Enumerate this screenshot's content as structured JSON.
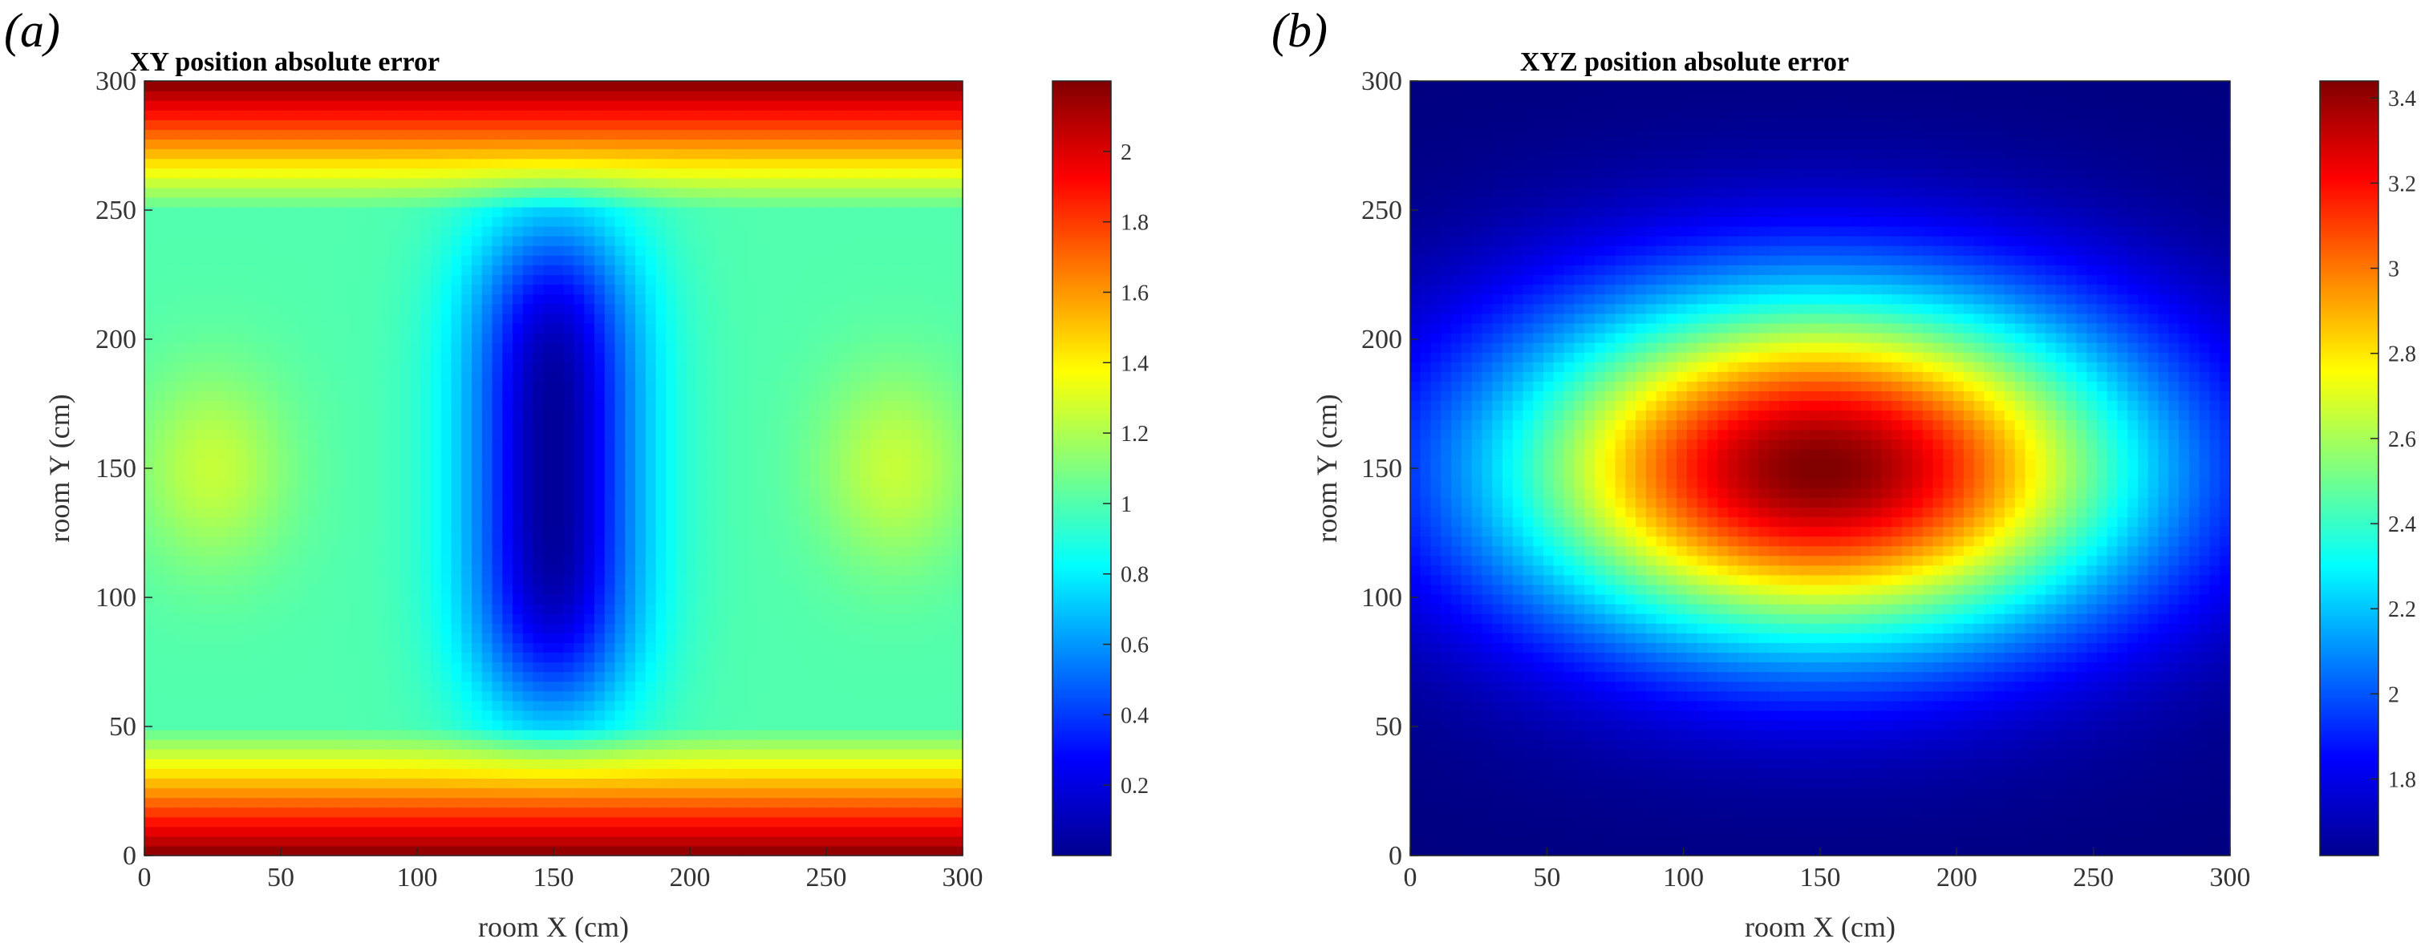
{
  "chart_data": [
    {
      "type": "heatmap",
      "panel_label": "(a)",
      "title": "XY position absolute error",
      "xlabel": "room X (cm)",
      "ylabel": "room Y (cm)",
      "xlim": [
        0,
        300
      ],
      "ylim": [
        0,
        300
      ],
      "x_ticks": [
        "0",
        "50",
        "100",
        "150",
        "200",
        "250",
        "300"
      ],
      "y_ticks": [
        "0",
        "50",
        "100",
        "150",
        "200",
        "250",
        "300"
      ],
      "colorbar": {
        "range": [
          0.0,
          2.2
        ],
        "ticks": [
          "0.2",
          "0.4",
          "0.6",
          "0.8",
          "1",
          "1.2",
          "1.4",
          "1.6",
          "1.8",
          "2"
        ],
        "tick_values": [
          0.2,
          0.4,
          0.6,
          0.8,
          1.0,
          1.2,
          1.4,
          1.6,
          1.8,
          2.0
        ],
        "colormap": "jet"
      },
      "description_values": {
        "center_minimum_at": [
          150,
          150
        ],
        "min_value": 0.05,
        "band_max_near_y": [
          0,
          300
        ],
        "max_value": 2.2,
        "side_local_peaks_at": [
          [
            25,
            150
          ],
          [
            275,
            150
          ]
        ],
        "side_peak_value": 1.25
      }
    },
    {
      "type": "heatmap",
      "panel_label": "(b)",
      "title": "XYZ position absolute error",
      "xlabel": "room X (cm)",
      "ylabel": "room Y (cm)",
      "xlim": [
        0,
        300
      ],
      "ylim": [
        0,
        300
      ],
      "x_ticks": [
        "0",
        "50",
        "100",
        "150",
        "200",
        "250",
        "300"
      ],
      "y_ticks": [
        "0",
        "50",
        "100",
        "150",
        "200",
        "250",
        "300"
      ],
      "colorbar": {
        "range": [
          1.62,
          3.44
        ],
        "ticks": [
          "1.8",
          "2",
          "2.2",
          "2.4",
          "2.6",
          "2.8",
          "3",
          "3.2",
          "3.4"
        ],
        "tick_values": [
          1.8,
          2.0,
          2.2,
          2.4,
          2.6,
          2.8,
          3.0,
          3.2,
          3.4
        ],
        "colormap": "jet"
      },
      "description_values": {
        "center_maximum_at": [
          150,
          150
        ],
        "max_value": 3.44,
        "corner_minimum_value": 1.62
      }
    }
  ]
}
